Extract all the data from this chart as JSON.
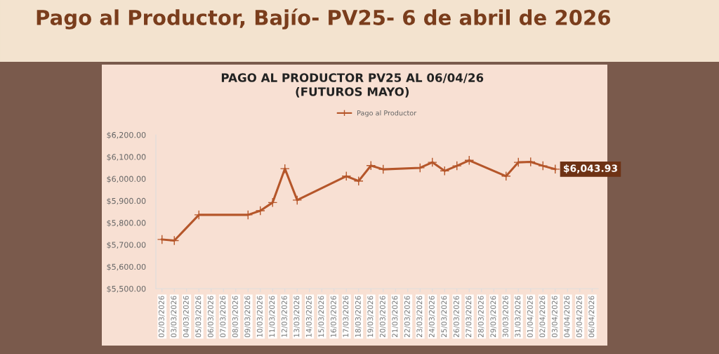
{
  "chart_data": {
    "type": "line",
    "title": "PAGO AL PRODUCTOR PV25 AL 06/04/26\n(FUTUROS MAYO)",
    "annotations": [
      "Pago al Productor, Bajío- PV25- 6 de abril de 2026"
    ],
    "categories": [
      "02/03/2026",
      "03/03/2026",
      "04/03/2026",
      "05/03/2026",
      "06/03/2026",
      "07/03/2026",
      "08/03/2026",
      "09/03/2026",
      "10/03/2026",
      "11/03/2026",
      "12/03/2026",
      "13/03/2026",
      "14/03/2026",
      "15/03/2026",
      "16/03/2026",
      "17/03/2026",
      "18/03/2026",
      "19/03/2026",
      "20/03/2026",
      "21/03/2026",
      "22/03/2026",
      "23/03/2026",
      "24/03/2026",
      "25/03/2026",
      "26/03/2026",
      "27/03/2026",
      "28/03/2026",
      "29/03/2026",
      "30/03/2026",
      "31/03/2026",
      "01/04/2026",
      "02/04/2026",
      "03/04/2026",
      "04/04/2026",
      "05/04/2026",
      "06/04/2026"
    ],
    "series": [
      {
        "name": "Pago al Productor",
        "color": "#b5562a",
        "values": [
          5724,
          5719,
          null,
          5836,
          null,
          null,
          null,
          5836,
          5855,
          5892,
          6046,
          5903,
          null,
          null,
          null,
          6012,
          5990,
          6060,
          6043,
          null,
          null,
          6050,
          6075,
          6036,
          6059,
          6084,
          null,
          null,
          6012,
          6075,
          6077,
          6059,
          6043.93,
          null,
          null,
          null
        ],
        "value_labels": [
          null,
          null,
          null,
          null,
          null,
          null,
          null,
          null,
          null,
          null,
          null,
          null,
          null,
          null,
          null,
          null,
          null,
          null,
          null,
          null,
          null,
          null,
          null,
          null,
          null,
          null,
          null,
          null,
          null,
          null,
          null,
          null,
          "$6,043.93",
          null,
          null,
          null
        ]
      }
    ],
    "ylim": [
      5500,
      6200
    ],
    "yticks": [
      {
        "value": 5500,
        "label": "$5,500.00"
      },
      {
        "value": 5600,
        "label": "$5,600.00"
      },
      {
        "value": 5700,
        "label": "$5,700.00"
      },
      {
        "value": 5800,
        "label": "$5,800.00"
      },
      {
        "value": 5900,
        "label": "$5,900.00"
      },
      {
        "value": 6000,
        "label": "$6,000.00"
      },
      {
        "value": 6100,
        "label": "$6,100.00"
      },
      {
        "value": 6200,
        "label": "$6,200.00"
      }
    ],
    "grid": false,
    "legend": "top",
    "marker": "cross",
    "line_style": "solid"
  }
}
